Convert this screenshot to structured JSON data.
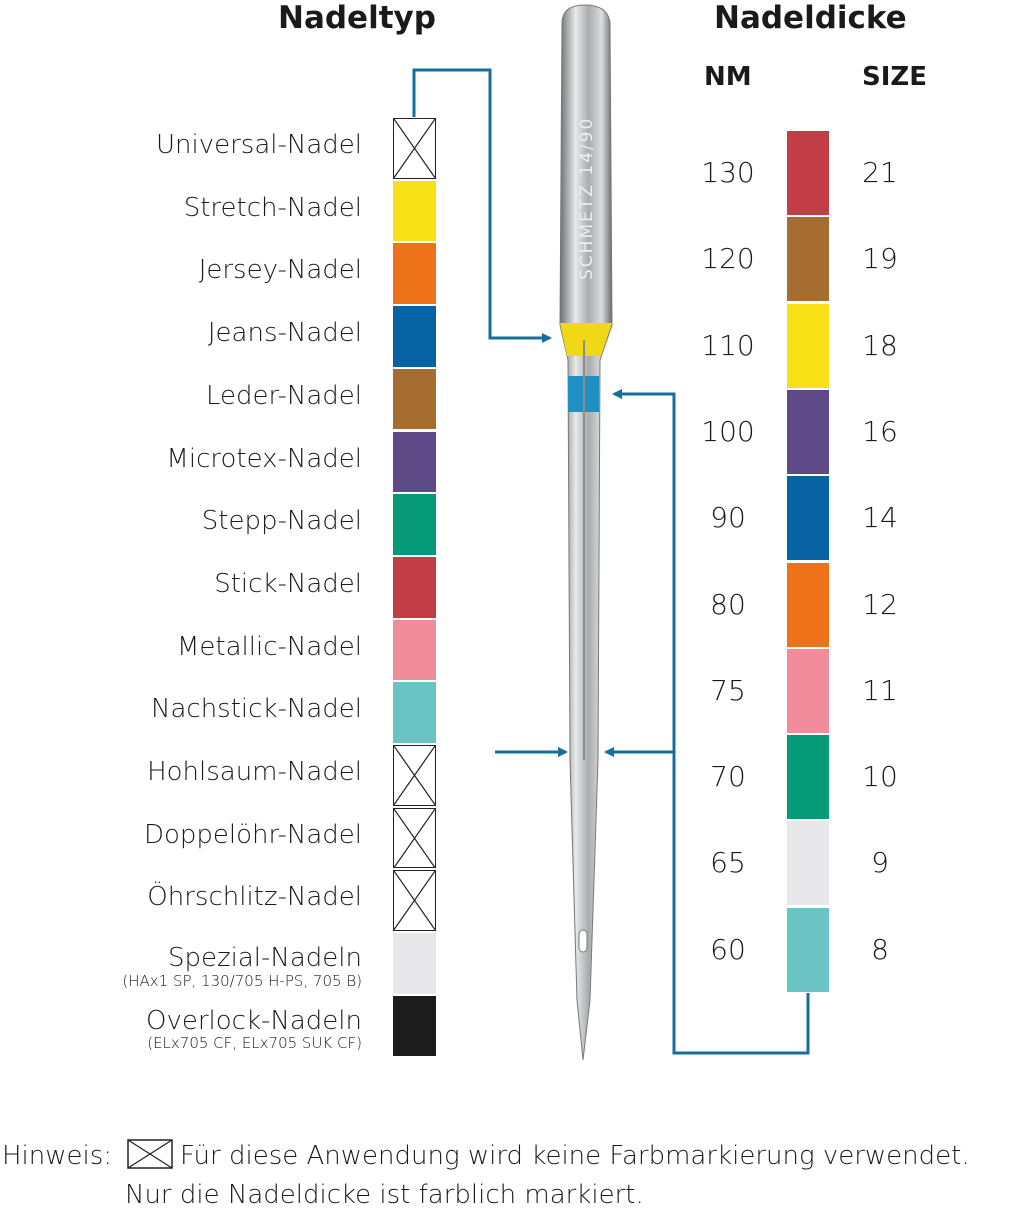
{
  "headings": {
    "needle_type": "Nadeltyp",
    "needle_size": "Nadeldicke",
    "nm": "NM",
    "size": "SIZE"
  },
  "needle": {
    "engraving": "SCHMETZ 14/90",
    "upper_band_color": "#f0d817",
    "lower_band_color": "#1f8fc4"
  },
  "line_color": "#146f9c",
  "needle_types": [
    {
      "label": "Universal-Nadel",
      "color": null
    },
    {
      "label": "Stretch-Nadel",
      "color": "#f7e016"
    },
    {
      "label": "Jersey-Nadel",
      "color": "#ee7219"
    },
    {
      "label": "Jeans-Nadel",
      "color": "#0863a5"
    },
    {
      "label": "Leder-Nadel",
      "color": "#a66d33"
    },
    {
      "label": "Microtex-Nadel",
      "color": "#5e4a87"
    },
    {
      "label": "Stepp-Nadel",
      "color": "#079a78"
    },
    {
      "label": "Stick-Nadel",
      "color": "#c13e47"
    },
    {
      "label": "Metallic-Nadel",
      "color": "#f08c9b"
    },
    {
      "label": "Nachstick-Nadel",
      "color": "#6ac4c4"
    },
    {
      "label": "Hohlsaum-Nadel",
      "color": null
    },
    {
      "label": "Doppelöhr-Nadel",
      "color": null
    },
    {
      "label": "Öhrschlitz-Nadel",
      "color": null
    },
    {
      "label": "Spezial-Nadeln",
      "note": "(HAx1 SP, 130/705 H-PS, 705 B)",
      "color": "#e8e8ea"
    },
    {
      "label": "Overlock-Nadeln",
      "note": "(ELx705 CF, ELx705 SUK CF)",
      "color": "#1c1c1c"
    }
  ],
  "sizes": [
    {
      "nm": "130",
      "size": "21",
      "color": "#c13e47"
    },
    {
      "nm": "120",
      "size": "19",
      "color": "#a66d33"
    },
    {
      "nm": "110",
      "size": "18",
      "color": "#f7e016"
    },
    {
      "nm": "100",
      "size": "16",
      "color": "#5e4a87"
    },
    {
      "nm": "90",
      "size": "14",
      "color": "#0863a5"
    },
    {
      "nm": "80",
      "size": "12",
      "color": "#ee7219"
    },
    {
      "nm": "75",
      "size": "11",
      "color": "#f08c9b"
    },
    {
      "nm": "70",
      "size": "10",
      "color": "#079a78"
    },
    {
      "nm": "65",
      "size": "9",
      "color": "#e8e8ea"
    },
    {
      "nm": "60",
      "size": "8",
      "color": "#6ac4c4"
    }
  ],
  "footer": {
    "prefix": "Hinweis:",
    "line1": "Für diese Anwendung wird keine Farbmarkierung verwendet.",
    "line2": "Nur die Nadeldicke ist farblich markiert."
  }
}
